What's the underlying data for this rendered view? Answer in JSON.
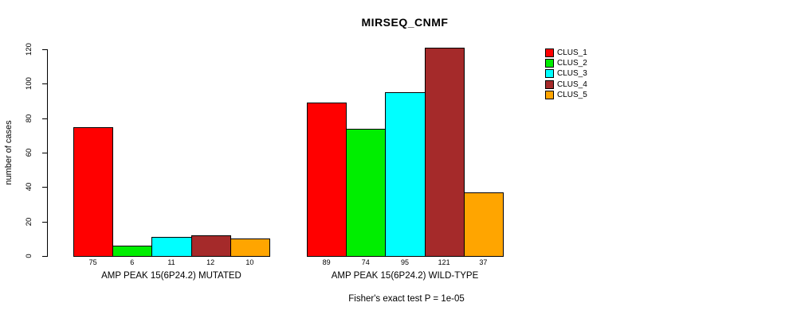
{
  "chart_data": {
    "type": "bar",
    "title": "MIRSEQ_CNMF",
    "ylabel": "number of cases",
    "xlabel": "",
    "ylim": [
      0,
      120
    ],
    "yticks": [
      0,
      20,
      40,
      60,
      80,
      100,
      120
    ],
    "grid": false,
    "legend_position": "right",
    "background": "#FFFFFF",
    "bar_border_color": "#000000",
    "legend": [
      {
        "label": "CLUS_1",
        "color": "#FF0000"
      },
      {
        "label": "CLUS_2",
        "color": "#00EE00"
      },
      {
        "label": "CLUS_3",
        "color": "#00FFFF"
      },
      {
        "label": "CLUS_4",
        "color": "#A52A2A"
      },
      {
        "label": "CLUS_5",
        "color": "#FFA500"
      }
    ],
    "groups": [
      {
        "label": "AMP PEAK 15(6P24.2) MUTATED",
        "values": [
          75,
          6,
          11,
          12,
          10
        ]
      },
      {
        "label": "AMP PEAK 15(6P24.2) WILD-TYPE",
        "values": [
          89,
          74,
          95,
          121,
          37
        ]
      }
    ],
    "annotation": "Fisher's exact test P = 1e-05"
  }
}
